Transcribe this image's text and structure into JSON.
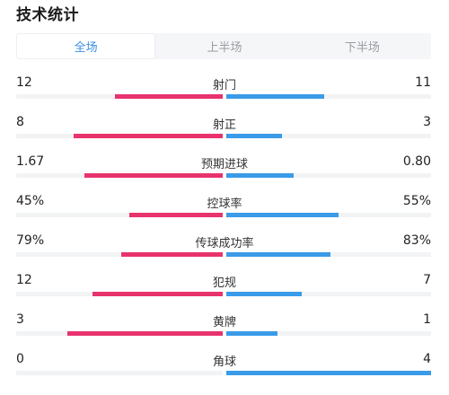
{
  "title": "技术统计",
  "tabs": [
    {
      "label": "全场",
      "active": true
    },
    {
      "label": "上半场",
      "active": false
    },
    {
      "label": "下半场",
      "active": false
    }
  ],
  "colors": {
    "home": "#e8336d",
    "away": "#3a9be8",
    "active_tab": "#3a8ee6"
  },
  "stats": [
    {
      "label": "射门",
      "home": "12",
      "away": "11",
      "home_frac": 0.52,
      "away_frac": 0.48
    },
    {
      "label": "射正",
      "home": "8",
      "away": "3",
      "home_frac": 0.72,
      "away_frac": 0.27
    },
    {
      "label": "预期进球",
      "home": "1.67",
      "away": "0.80",
      "home_frac": 0.67,
      "away_frac": 0.33
    },
    {
      "label": "控球率",
      "home": "45%",
      "away": "55%",
      "home_frac": 0.45,
      "away_frac": 0.55
    },
    {
      "label": "传球成功率",
      "home": "79%",
      "away": "83%",
      "home_frac": 0.49,
      "away_frac": 0.51
    },
    {
      "label": "犯规",
      "home": "12",
      "away": "7",
      "home_frac": 0.63,
      "away_frac": 0.37
    },
    {
      "label": "黄牌",
      "home": "3",
      "away": "1",
      "home_frac": 0.75,
      "away_frac": 0.25
    },
    {
      "label": "角球",
      "home": "0",
      "away": "4",
      "home_frac": 0.0,
      "away_frac": 1.0
    }
  ]
}
